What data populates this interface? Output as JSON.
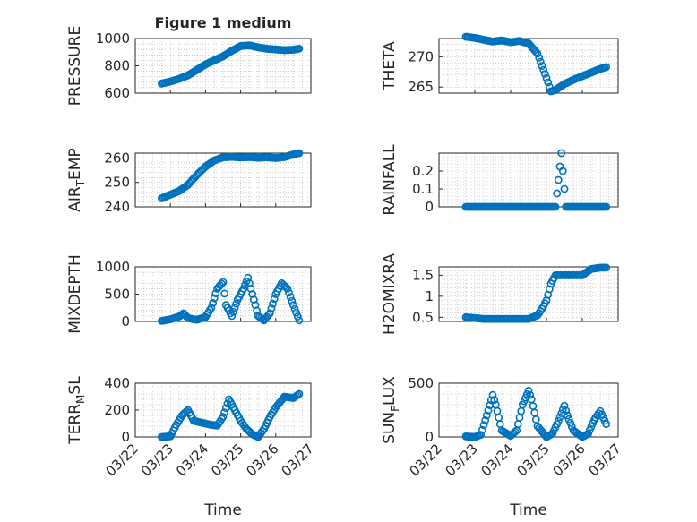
{
  "chart_data": [
    {
      "type": "scatter",
      "title": "Figure 1 medium",
      "ylabel": "PRESSURE",
      "ylabel_sub": "",
      "ylim": [
        600,
        1000
      ],
      "yticks": [
        600,
        800,
        1000
      ],
      "xlim": [
        "03/22",
        "03/27"
      ],
      "xticks": [
        "03/22",
        "03/23",
        "03/24",
        "03/25",
        "03/26",
        "03/27"
      ],
      "xlabel": "",
      "x": [
        "03/22 18:00",
        "03/23 00:00",
        "03/23 06:00",
        "03/23 12:00",
        "03/23 18:00",
        "03/24 00:00",
        "03/24 06:00",
        "03/24 12:00",
        "03/24 18:00",
        "03/25 00:00",
        "03/25 06:00",
        "03/25 12:00",
        "03/25 18:00",
        "03/26 00:00",
        "03/26 06:00",
        "03/26 12:00",
        "03/26 16:00"
      ],
      "y": [
        670,
        685,
        705,
        730,
        770,
        810,
        840,
        870,
        910,
        945,
        950,
        935,
        925,
        920,
        915,
        918,
        925
      ]
    },
    {
      "type": "scatter",
      "title": "",
      "ylabel": "THETA",
      "ylabel_sub": "",
      "ylim": [
        264,
        273
      ],
      "yticks": [
        265,
        270
      ],
      "xlim": [
        "03/22",
        "03/27"
      ],
      "xticks": [
        "03/22",
        "03/23",
        "03/24",
        "03/25",
        "03/26",
        "03/27"
      ],
      "xlabel": "",
      "x": [
        "03/22 18:00",
        "03/23 00:00",
        "03/23 06:00",
        "03/23 12:00",
        "03/23 18:00",
        "03/24 00:00",
        "03/24 06:00",
        "03/24 12:00",
        "03/24 18:00",
        "03/24 21:00",
        "03/25 00:00",
        "03/25 03:00",
        "03/25 06:00",
        "03/25 12:00",
        "03/25 18:00",
        "03/26 00:00",
        "03/26 06:00",
        "03/26 12:00",
        "03/26 16:00"
      ],
      "y": [
        273.3,
        273.1,
        272.8,
        272.5,
        272.7,
        272.4,
        272.6,
        272.2,
        270.5,
        268.5,
        266.5,
        264.3,
        264.5,
        265.5,
        266.2,
        266.8,
        267.4,
        268.0,
        268.3
      ]
    },
    {
      "type": "scatter",
      "title": "",
      "ylabel": "AIR",
      "ylabel_sub": "T",
      "ylabel_rest": "EMP",
      "ylim": [
        240,
        262
      ],
      "yticks": [
        240,
        250,
        260
      ],
      "xlim": [
        "03/22",
        "03/27"
      ],
      "xticks": [
        "03/22",
        "03/23",
        "03/24",
        "03/25",
        "03/26",
        "03/27"
      ],
      "xlabel": "",
      "x": [
        "03/22 18:00",
        "03/23 00:00",
        "03/23 06:00",
        "03/23 12:00",
        "03/23 18:00",
        "03/24 00:00",
        "03/24 06:00",
        "03/24 12:00",
        "03/24 18:00",
        "03/25 00:00",
        "03/25 06:00",
        "03/25 12:00",
        "03/25 18:00",
        "03/26 00:00",
        "03/26 06:00",
        "03/26 12:00",
        "03/26 16:00"
      ],
      "y": [
        243.5,
        245,
        246.5,
        249,
        253,
        256.5,
        259,
        260.3,
        260.5,
        260.2,
        260.4,
        260.1,
        260.3,
        260.0,
        260.4,
        261.5,
        262.0
      ]
    },
    {
      "type": "scatter",
      "title": "",
      "ylabel": "RAINFALL",
      "ylabel_sub": "",
      "ylim": [
        0,
        0.3
      ],
      "yticks": [
        0,
        0.1,
        0.2
      ],
      "xlim": [
        "03/22",
        "03/27"
      ],
      "xticks": [
        "03/22",
        "03/23",
        "03/24",
        "03/25",
        "03/26",
        "03/27"
      ],
      "xlabel": "",
      "x": [
        "03/22 18:00",
        "03/23 00:00",
        "03/23 06:00",
        "03/23 12:00",
        "03/23 18:00",
        "03/24 00:00",
        "03/24 06:00",
        "03/24 12:00",
        "03/24 18:00",
        "03/25 00:00",
        "03/25 06:00",
        "03/25 10:00",
        "03/25 13:00",
        "03/25 18:00",
        "03/26 00:00",
        "03/26 06:00",
        "03/26 12:00",
        "03/26 16:00"
      ],
      "y": [
        0,
        0,
        0,
        0,
        0,
        0,
        0,
        0,
        0,
        0,
        0,
        0.3,
        0,
        0,
        0,
        0,
        0,
        0
      ]
    },
    {
      "type": "scatter",
      "title": "",
      "ylabel": "MIXDEPTH",
      "ylabel_sub": "",
      "ylim": [
        0,
        1000
      ],
      "yticks": [
        0,
        500,
        1000
      ],
      "xlim": [
        "03/22",
        "03/27"
      ],
      "xticks": [
        "03/22",
        "03/23",
        "03/24",
        "03/25",
        "03/26",
        "03/27"
      ],
      "xlabel": "",
      "x": [
        "03/22 18:00",
        "03/23 00:00",
        "03/23 06:00",
        "03/23 09:00",
        "03/23 12:00",
        "03/23 18:00",
        "03/24 00:00",
        "03/24 04:00",
        "03/24 08:00",
        "03/24 12:00",
        "03/24 14:00",
        "03/24 18:00",
        "03/24 22:00",
        "03/25 02:00",
        "03/25 05:00",
        "03/25 08:00",
        "03/25 12:00",
        "03/25 16:00",
        "03/25 20:00",
        "03/26 00:00",
        "03/26 04:00",
        "03/26 08:00",
        "03/26 12:00",
        "03/26 16:00"
      ],
      "y": [
        10,
        40,
        90,
        150,
        60,
        30,
        80,
        250,
        600,
        720,
        300,
        100,
        400,
        600,
        800,
        500,
        100,
        20,
        150,
        500,
        700,
        600,
        300,
        20
      ]
    },
    {
      "type": "scatter",
      "title": "",
      "ylabel": "H2OMIXRA",
      "ylabel_sub": "",
      "ylim": [
        0.4,
        1.7
      ],
      "yticks": [
        0.5,
        1,
        1.5
      ],
      "xlim": [
        "03/22",
        "03/27"
      ],
      "xticks": [
        "03/22",
        "03/23",
        "03/24",
        "03/25",
        "03/26",
        "03/27"
      ],
      "xlabel": "",
      "x": [
        "03/22 18:00",
        "03/23 00:00",
        "03/23 06:00",
        "03/23 12:00",
        "03/23 18:00",
        "03/24 00:00",
        "03/24 06:00",
        "03/24 12:00",
        "03/24 18:00",
        "03/24 21:00",
        "03/25 00:00",
        "03/25 03:00",
        "03/25 06:00",
        "03/25 12:00",
        "03/25 18:00",
        "03/26 00:00",
        "03/26 06:00",
        "03/26 12:00",
        "03/26 16:00"
      ],
      "y": [
        0.5,
        0.48,
        0.46,
        0.46,
        0.46,
        0.46,
        0.46,
        0.46,
        0.55,
        0.7,
        0.9,
        1.3,
        1.5,
        1.5,
        1.5,
        1.5,
        1.65,
        1.68,
        1.68
      ]
    },
    {
      "type": "scatter",
      "title": "",
      "ylabel": "TERR",
      "ylabel_sub": "M",
      "ylabel_rest": "SL",
      "ylim": [
        0,
        400
      ],
      "yticks": [
        0,
        200,
        400
      ],
      "xlim": [
        "03/22",
        "03/27"
      ],
      "xticks": [
        "03/22",
        "03/23",
        "03/24",
        "03/25",
        "03/26",
        "03/27"
      ],
      "xlabel": "Time",
      "x": [
        "03/22 18:00",
        "03/23 00:00",
        "03/23 04:00",
        "03/23 08:00",
        "03/23 12:00",
        "03/23 16:00",
        "03/24 00:00",
        "03/24 04:00",
        "03/24 08:00",
        "03/24 12:00",
        "03/24 16:00",
        "03/24 20:00",
        "03/25 00:00",
        "03/25 04:00",
        "03/25 08:00",
        "03/25 12:00",
        "03/25 16:00",
        "03/25 20:00",
        "03/26 00:00",
        "03/26 06:00",
        "03/26 12:00",
        "03/26 16:00"
      ],
      "y": [
        0,
        5,
        90,
        160,
        200,
        120,
        100,
        90,
        85,
        150,
        280,
        200,
        120,
        60,
        20,
        0,
        60,
        150,
        220,
        300,
        290,
        320
      ]
    },
    {
      "type": "scatter",
      "title": "",
      "ylabel": "SUN",
      "ylabel_sub": "F",
      "ylabel_rest": "LUX",
      "ylim": [
        0,
        500
      ],
      "yticks": [
        0,
        500
      ],
      "xlim": [
        "03/22",
        "03/27"
      ],
      "xticks": [
        "03/22",
        "03/23",
        "03/24",
        "03/25",
        "03/26",
        "03/27"
      ],
      "xlabel": "Time",
      "x": [
        "03/22 18:00",
        "03/23 00:00",
        "03/23 04:00",
        "03/23 08:00",
        "03/23 12:00",
        "03/23 14:00",
        "03/23 18:00",
        "03/24 00:00",
        "03/24 04:00",
        "03/24 08:00",
        "03/24 12:00",
        "03/24 14:00",
        "03/24 18:00",
        "03/25 00:00",
        "03/25 04:00",
        "03/25 08:00",
        "03/25 12:00",
        "03/25 14:00",
        "03/25 18:00",
        "03/26 00:00",
        "03/26 04:00",
        "03/26 08:00",
        "03/26 12:00",
        "03/26 16:00"
      ],
      "y": [
        5,
        0,
        20,
        200,
        390,
        300,
        60,
        10,
        60,
        300,
        430,
        350,
        100,
        0,
        30,
        150,
        290,
        200,
        60,
        0,
        30,
        160,
        240,
        120
      ]
    }
  ]
}
